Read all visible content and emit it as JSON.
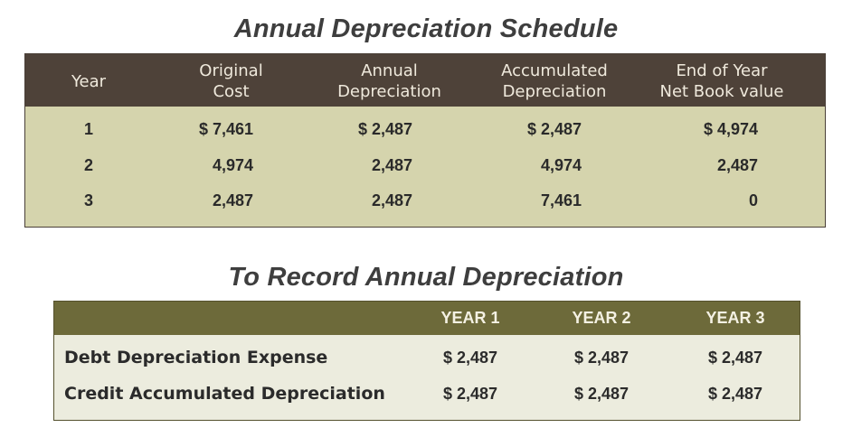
{
  "schedule": {
    "title": "Annual Depreciation Schedule",
    "headers": {
      "year": [
        "Year"
      ],
      "original_cost": [
        "Original",
        "Cost"
      ],
      "annual_depreciation": [
        "Annual",
        "Depreciation"
      ],
      "accumulated_depreciation": [
        "Accumulated",
        "Depreciation"
      ],
      "end_of_year_nbv": [
        "End of Year",
        "Net Book value"
      ]
    },
    "rows": [
      {
        "year": "1",
        "original_cost": "$ 7,461",
        "annual_depreciation": "$ 2,487",
        "accumulated_depreciation": "$ 2,487",
        "end_of_year_nbv": "$ 4,974"
      },
      {
        "year": "2",
        "original_cost": "4,974",
        "annual_depreciation": "2,487",
        "accumulated_depreciation": "4,974",
        "end_of_year_nbv": "2,487"
      },
      {
        "year": "3",
        "original_cost": "2,487",
        "annual_depreciation": "2,487",
        "accumulated_depreciation": "7,461",
        "end_of_year_nbv": "0"
      }
    ]
  },
  "entries": {
    "title": "To Record Annual Depreciation",
    "headers": [
      "YEAR 1",
      "YEAR 2",
      "YEAR 3"
    ],
    "rows": [
      {
        "label": "Debt Depreciation Expense",
        "values": [
          "$ 2,487",
          "$ 2,487",
          "$ 2,487"
        ]
      },
      {
        "label": "Credit Accumulated Depreciation",
        "values": [
          "$ 2,487",
          "$ 2,487",
          "$ 2,487"
        ]
      }
    ]
  },
  "colors": {
    "schedule_header_bg": "#4e4239",
    "schedule_body_bg": "#d5d4ad",
    "entries_header_bg": "#6d6a3a",
    "entries_body_bg": "#ececde",
    "title_text": "#3e3e3e"
  }
}
